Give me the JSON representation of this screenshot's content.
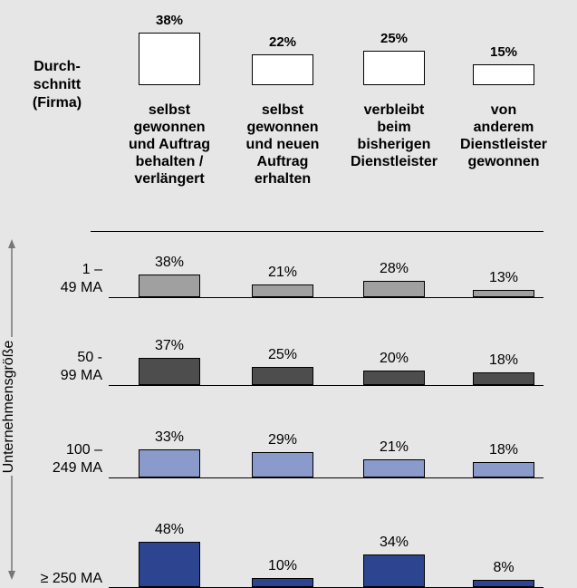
{
  "chart_data": {
    "type": "bar",
    "y_axis_label": "Unternehmensgröße",
    "categories": [
      "selbst\ngewonnen\nund Auftrag\nbehalten /\nverlängert",
      "selbst\ngewonnen\nund neuen\nAuftrag\nerhalten",
      "verbleibt\nbeim\nbisherigen\nDienstleister",
      "von\nanderem\nDienstleister\ngewonnen"
    ],
    "series": [
      {
        "name": "Durch-\nschnitt\n(Firma)",
        "color": "#ffffff",
        "values": [
          38,
          22,
          25,
          15
        ],
        "value_labels": [
          "38%",
          "22%",
          "25%",
          "15%"
        ]
      },
      {
        "name": "1 –\n49 MA",
        "color": "#a0a0a0",
        "values": [
          38,
          21,
          28,
          13
        ],
        "value_labels": [
          "38%",
          "21%",
          "28%",
          "13%"
        ]
      },
      {
        "name": "50 -\n99 MA",
        "color": "#4d4d4d",
        "values": [
          37,
          25,
          20,
          18
        ],
        "value_labels": [
          "37%",
          "25%",
          "20%",
          "18%"
        ]
      },
      {
        "name": "100 –\n249 MA",
        "color": "#8a9bcb",
        "values": [
          33,
          29,
          21,
          18
        ],
        "value_labels": [
          "33%",
          "29%",
          "21%",
          "18%"
        ]
      },
      {
        "name": "≥ 250 MA",
        "color": "#2d4491",
        "values": [
          48,
          10,
          34,
          8
        ],
        "value_labels": [
          "48%",
          "10%",
          "34%",
          "8%"
        ]
      }
    ]
  }
}
